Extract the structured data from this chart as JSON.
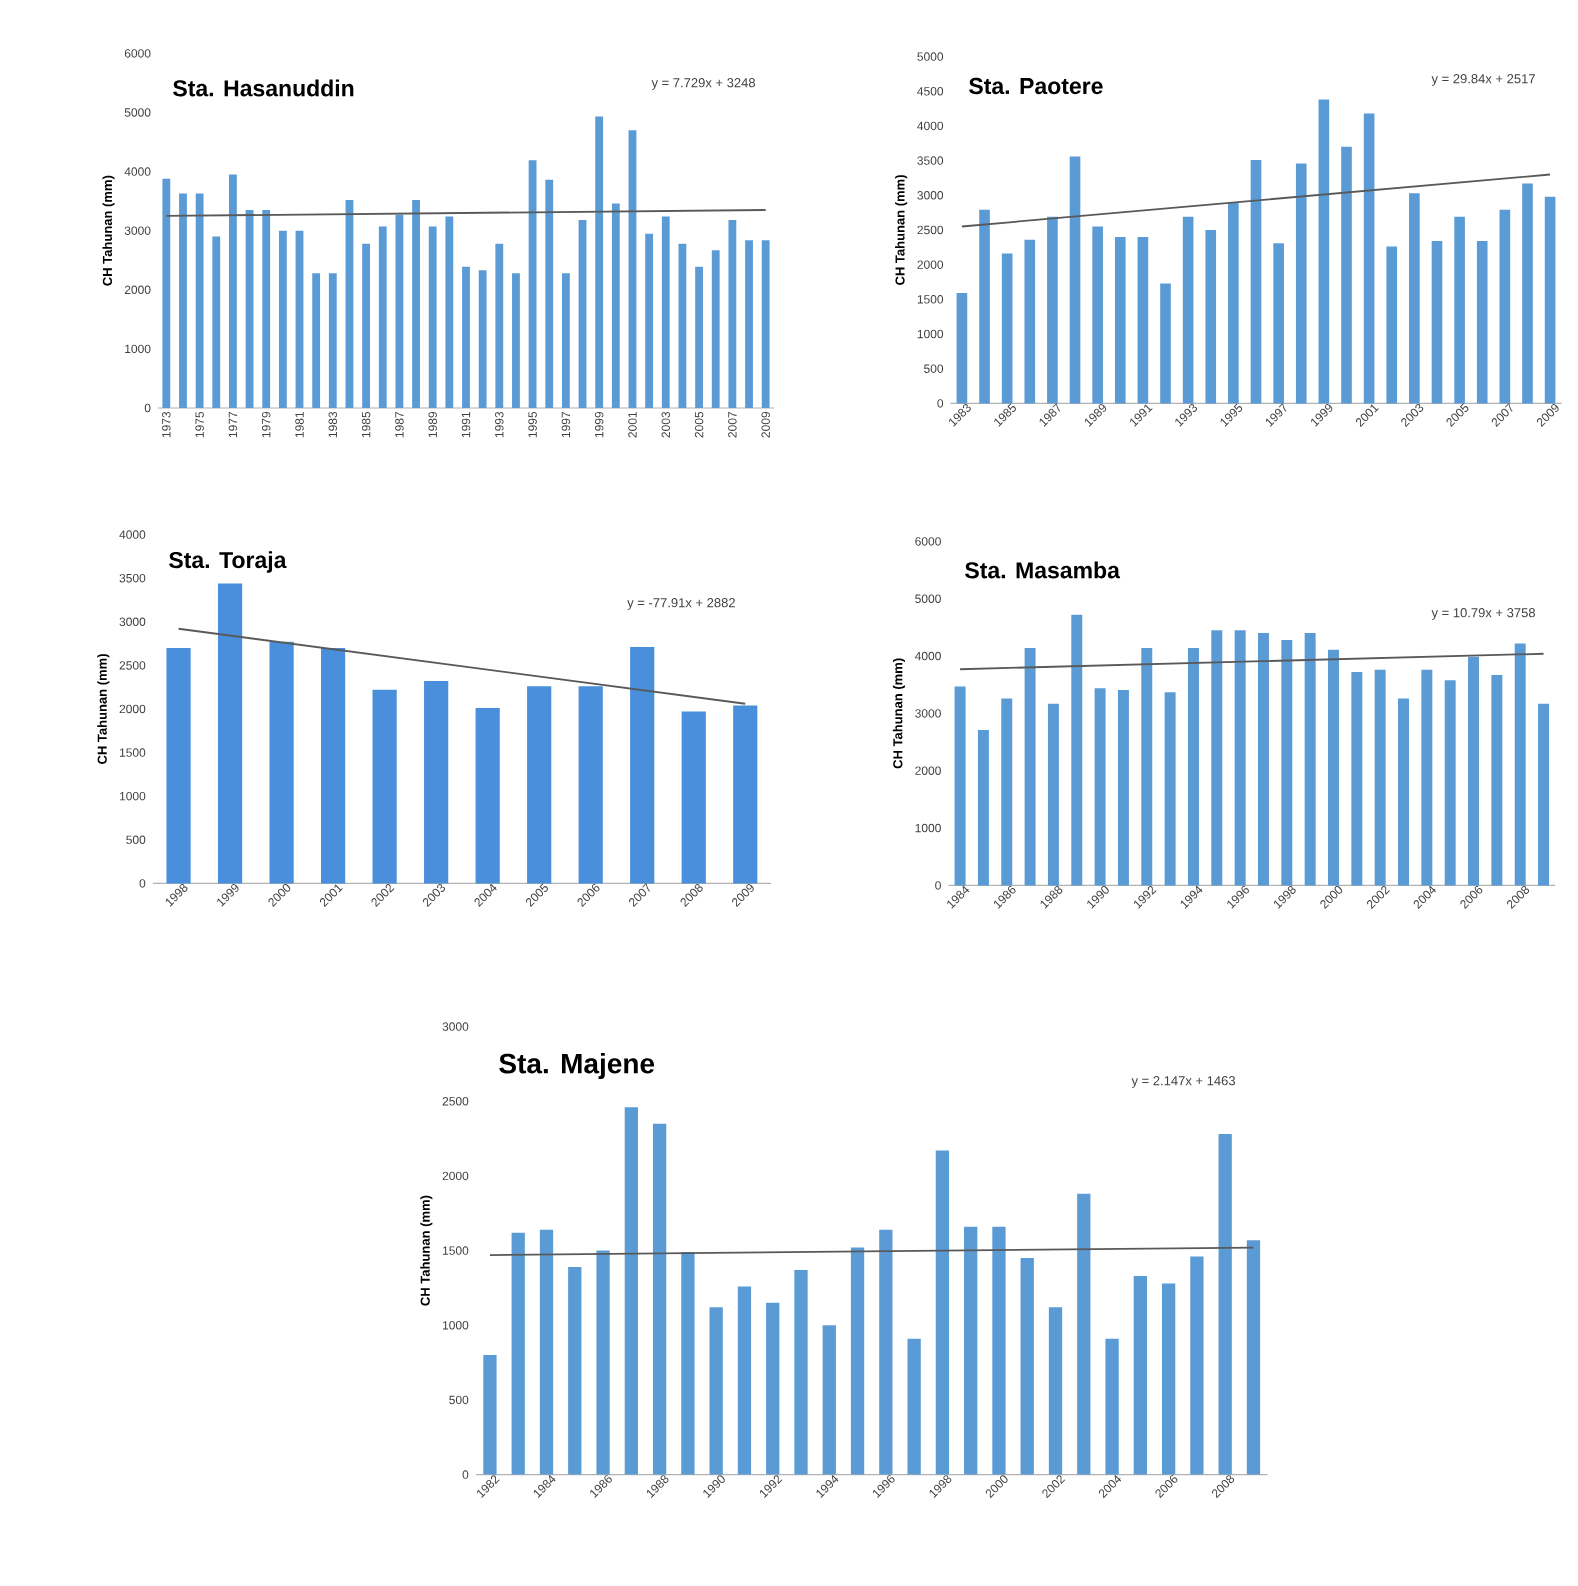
{
  "chart_data": [
    {
      "type": "bar",
      "title": "Sta. Hasanuddin",
      "ylabel": "CH Tahunan (mm)",
      "annotations": [
        "y = 7.729x + 3248"
      ],
      "x": [
        1973,
        1974,
        1975,
        1976,
        1977,
        1978,
        1979,
        1980,
        1981,
        1982,
        1983,
        1984,
        1985,
        1986,
        1987,
        1988,
        1989,
        1990,
        1991,
        1992,
        1993,
        1994,
        1995,
        1996,
        1997,
        1998,
        1999,
        2000,
        2001,
        2002,
        2003,
        2004,
        2005,
        2006,
        2007,
        2008,
        2009
      ],
      "series": [
        {
          "color": "#5b9bd5",
          "values": [
            3880,
            3630,
            3630,
            2900,
            3950,
            3350,
            3350,
            3000,
            3000,
            2280,
            2280,
            3520,
            2780,
            3070,
            3270,
            3520,
            3070,
            3240,
            2390,
            2330,
            2780,
            2280,
            4190,
            3860,
            2280,
            3180,
            4930,
            3460,
            4700,
            2950,
            3240,
            2780,
            2390,
            2670,
            3180,
            2840,
            2840
          ]
        },
        {
          "type": "line",
          "color": "#595959",
          "x": [
            1973,
            2009
          ],
          "values": [
            3250,
            3350
          ]
        }
      ],
      "xlim": [
        1972.5,
        2009.5
      ],
      "xticks": [
        1973,
        1975,
        1977,
        1979,
        1981,
        1983,
        1985,
        1987,
        1989,
        1991,
        1993,
        1995,
        1997,
        1999,
        2001,
        2003,
        2005,
        2007,
        2009
      ],
      "ylim": [
        0,
        6000
      ],
      "yticks": [
        0,
        1000,
        2000,
        3000,
        4000,
        5000,
        6000
      ]
    },
    {
      "type": "bar",
      "title": "Sta. Paotere",
      "ylabel": "CH Tahunan (mm)",
      "annotations": [
        "y = 29.84x + 2517"
      ],
      "x": [
        1983,
        1984,
        1985,
        1986,
        1987,
        1988,
        1989,
        1990,
        1991,
        1992,
        1993,
        1994,
        1995,
        1996,
        1997,
        1998,
        1999,
        2000,
        2001,
        2002,
        2003,
        2004,
        2005,
        2006,
        2007,
        2008,
        2009
      ],
      "series": [
        {
          "color": "#5b9bd5",
          "values": [
            1590,
            2790,
            2160,
            2360,
            2690,
            3560,
            2550,
            2400,
            2400,
            1730,
            2690,
            2500,
            2890,
            3510,
            2310,
            3460,
            4380,
            3700,
            4180,
            2260,
            3030,
            2340,
            2690,
            2340,
            2790,
            3170,
            2980
          ]
        },
        {
          "type": "line",
          "color": "#595959",
          "x": [
            1983,
            2009
          ],
          "values": [
            2550,
            3300
          ]
        }
      ],
      "xlim": [
        1982.5,
        2009.5
      ],
      "xticks": [
        1983,
        1985,
        1987,
        1989,
        1991,
        1993,
        1995,
        1997,
        1999,
        2001,
        2003,
        2005,
        2007,
        2009
      ],
      "ylim": [
        0,
        5000
      ],
      "yticks": [
        0,
        500,
        1000,
        1500,
        2000,
        2500,
        3000,
        3500,
        4000,
        4500,
        5000
      ]
    },
    {
      "type": "bar",
      "title": "Sta. Toraja",
      "ylabel": "CH Tahunan (mm)",
      "annotations": [
        "y = -77.91x + 2882"
      ],
      "x": [
        1998,
        1999,
        2000,
        2001,
        2002,
        2003,
        2004,
        2005,
        2006,
        2007,
        2008,
        2009
      ],
      "series": [
        {
          "color": "#4a8fdc",
          "values": [
            2700,
            3440,
            2770,
            2700,
            2220,
            2320,
            2010,
            2260,
            2260,
            2710,
            1970,
            2040
          ]
        },
        {
          "type": "line",
          "color": "#595959",
          "x": [
            1998,
            2009
          ],
          "values": [
            2920,
            2060
          ]
        }
      ],
      "xlim": [
        1997.5,
        2009.5
      ],
      "xticks": [
        1998,
        1999,
        2000,
        2001,
        2002,
        2003,
        2004,
        2005,
        2006,
        2007,
        2008,
        2009
      ],
      "ylim": [
        0,
        4000
      ],
      "yticks": [
        0,
        500,
        1000,
        1500,
        2000,
        2500,
        3000,
        3500,
        4000
      ]
    },
    {
      "type": "bar",
      "title": "Sta. Masamba",
      "ylabel": "CH Tahunan (mm)",
      "annotations": [
        "y = 10.79x + 3758"
      ],
      "x": [
        1984,
        1985,
        1986,
        1987,
        1988,
        1989,
        1990,
        1991,
        1992,
        1993,
        1994,
        1995,
        1996,
        1997,
        1998,
        1999,
        2000,
        2001,
        2002,
        2003,
        2004,
        2005,
        2006,
        2007,
        2008,
        2009
      ],
      "series": [
        {
          "color": "#5b9bd5",
          "values": [
            3470,
            2710,
            3260,
            4140,
            3170,
            4720,
            3440,
            3410,
            4140,
            3370,
            4140,
            4450,
            4450,
            4400,
            4280,
            4400,
            4110,
            3720,
            3760,
            3260,
            3760,
            3580,
            3990,
            3670,
            4220,
            3170
          ]
        },
        {
          "type": "line",
          "color": "#595959",
          "x": [
            1984,
            2009
          ],
          "values": [
            3770,
            4040
          ]
        }
      ],
      "xlim": [
        1983.5,
        2009.5
      ],
      "xticks": [
        1984,
        1986,
        1988,
        1990,
        1992,
        1994,
        1996,
        1998,
        2000,
        2002,
        2004,
        2006,
        2008
      ],
      "ylim": [
        0,
        6000
      ],
      "yticks": [
        0,
        1000,
        2000,
        3000,
        4000,
        5000,
        6000
      ]
    },
    {
      "type": "bar",
      "title": "Sta. Majene",
      "ylabel": "CH Tahunan (mm)",
      "annotations": [
        "y = 2.147x + 1463"
      ],
      "x": [
        1982,
        1983,
        1984,
        1985,
        1986,
        1987,
        1988,
        1989,
        1990,
        1991,
        1992,
        1993,
        1994,
        1995,
        1996,
        1997,
        1998,
        1999,
        2000,
        2001,
        2002,
        2003,
        2004,
        2005,
        2006,
        2007,
        2008,
        2009
      ],
      "series": [
        {
          "color": "#5b9bd5",
          "values": [
            800,
            1620,
            1640,
            1390,
            1500,
            2460,
            2350,
            1490,
            1120,
            1260,
            1150,
            1370,
            1000,
            1520,
            1640,
            910,
            2170,
            1660,
            1660,
            1450,
            1120,
            1880,
            910,
            1330,
            1280,
            1460,
            2280,
            1570
          ]
        },
        {
          "type": "line",
          "color": "#595959",
          "x": [
            1982,
            2009
          ],
          "values": [
            1470,
            1520
          ]
        }
      ],
      "xlim": [
        1981.5,
        2009.5
      ],
      "xticks": [
        1982,
        1984,
        1986,
        1988,
        1990,
        1992,
        1994,
        1996,
        1998,
        2000,
        2002,
        2004,
        2006,
        2008
      ],
      "ylim": [
        0,
        3000
      ],
      "yticks": [
        0,
        500,
        1000,
        1500,
        2000,
        2500,
        3000
      ]
    }
  ]
}
